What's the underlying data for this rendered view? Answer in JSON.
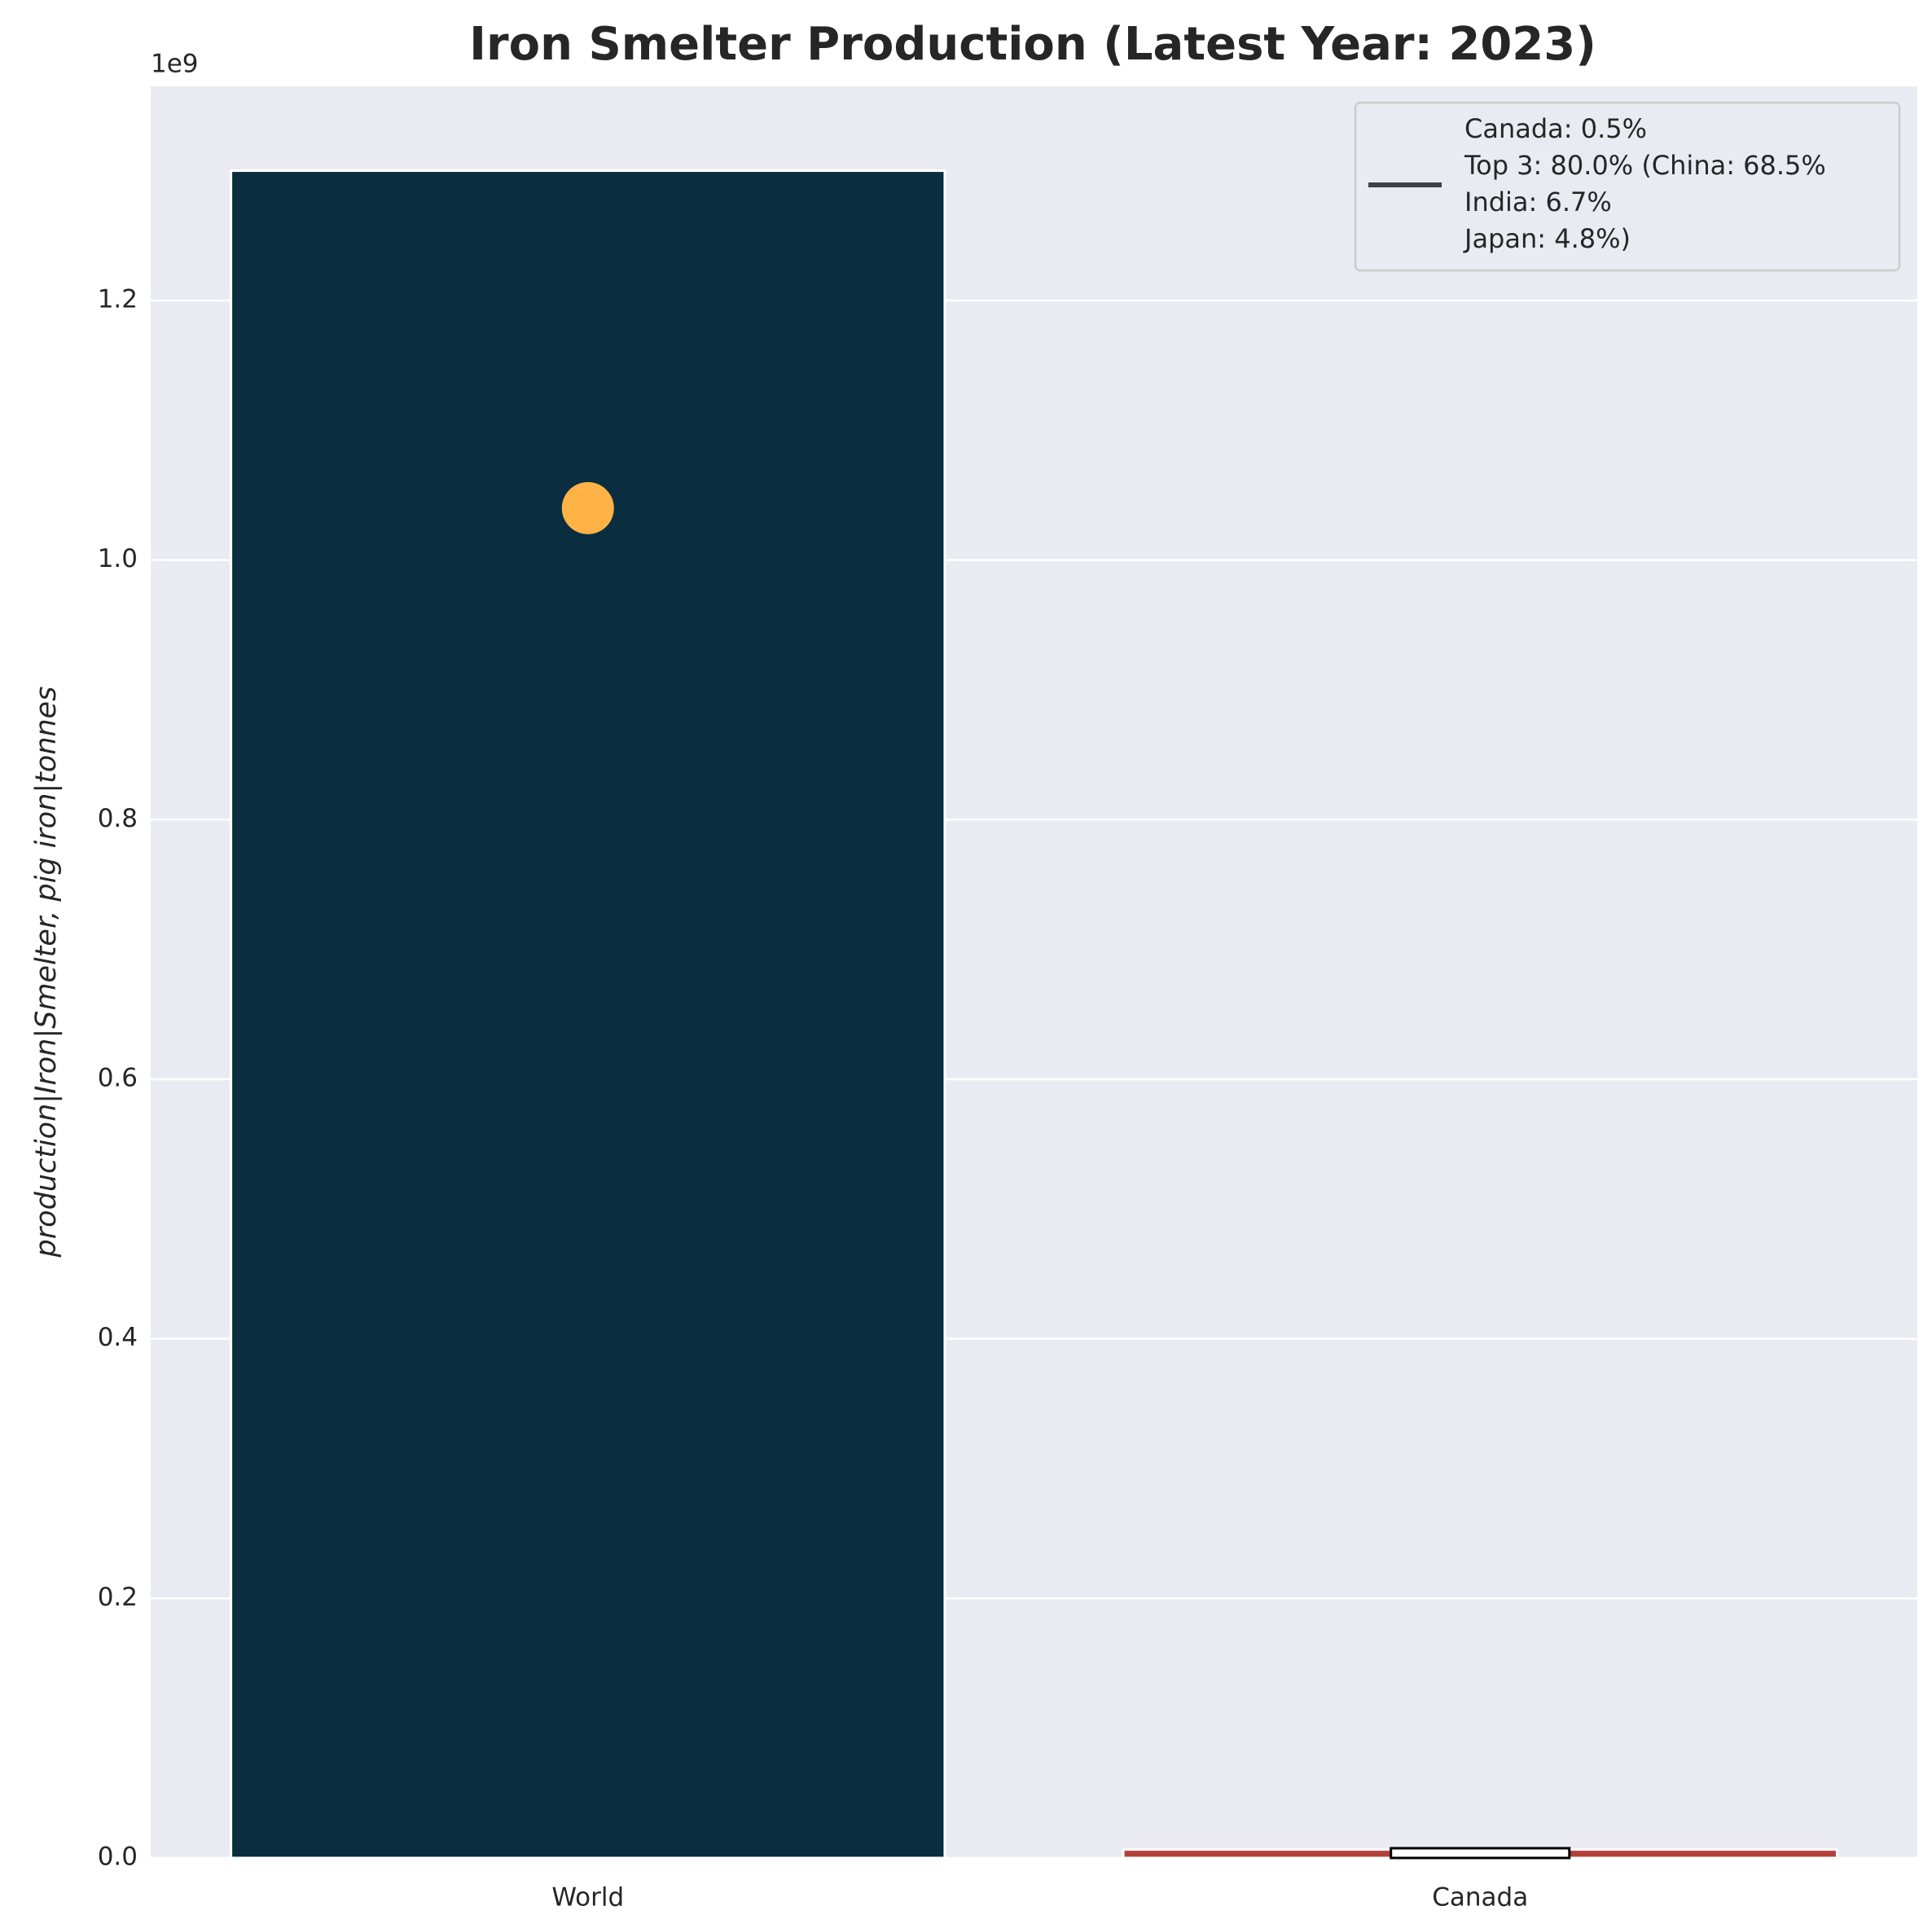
{
  "chart_data": {
    "type": "bar",
    "title": "Iron Smelter Production (Latest Year: 2023)",
    "y_label": "production|Iron|Smelter, pig iron|tonnes",
    "y_offset_label": "1e9",
    "categories": [
      "World",
      "Canada"
    ],
    "values": [
      1300000000,
      6500000
    ],
    "colors": [
      "#0a2d40",
      "#b5403a"
    ],
    "inner_box": {
      "category": 1,
      "value": 7500000,
      "color": "#ffffff",
      "edge": "#000000"
    },
    "marker": {
      "category": 0,
      "value": 1040000000,
      "color": "#ffb347"
    },
    "ylim": [
      0,
      1365000000
    ],
    "yticks": [
      {
        "value": 0,
        "label": "0.0"
      },
      {
        "value": 200000000,
        "label": "0.2"
      },
      {
        "value": 400000000,
        "label": "0.4"
      },
      {
        "value": 600000000,
        "label": "0.6"
      },
      {
        "value": 800000000,
        "label": "0.8"
      },
      {
        "value": 1000000000,
        "label": "1.0"
      },
      {
        "value": 1200000000,
        "label": "1.2"
      }
    ],
    "grid": true,
    "legend": {
      "position": "upper right",
      "color": "#404040",
      "lines": [
        "Canada: 0.5%",
        "Top 3: 80.0% (China: 68.5%",
        "India: 6.7%",
        "Japan: 4.8%)"
      ]
    }
  }
}
